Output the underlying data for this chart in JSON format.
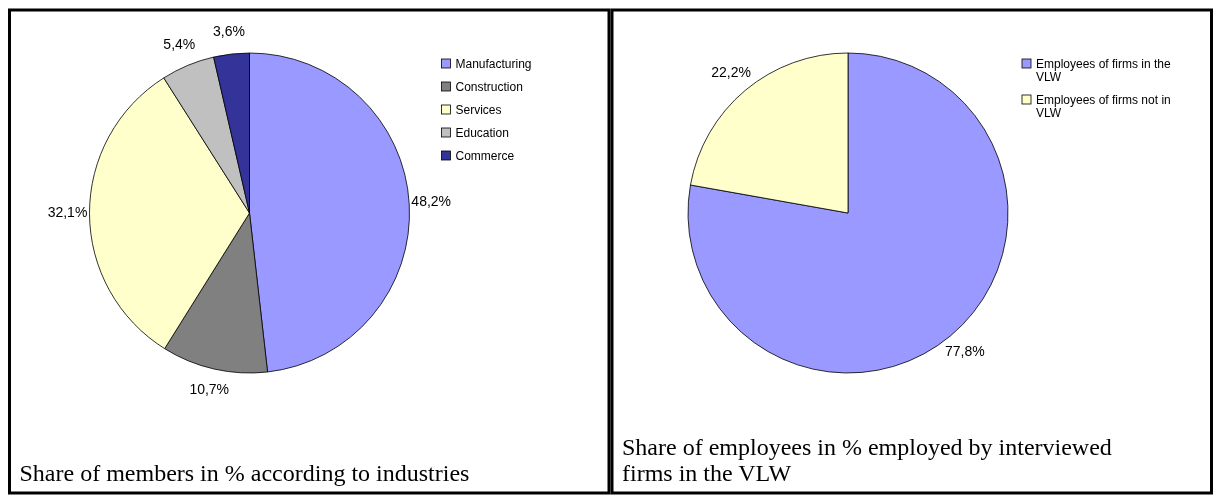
{
  "chart_data": [
    {
      "type": "pie",
      "title": "Share of members in % according to industries",
      "categories": [
        "Manufacturing",
        "Construction",
        "Services",
        "Education",
        "Commerce"
      ],
      "values": [
        48.2,
        10.7,
        32.1,
        5.4,
        3.6
      ],
      "colors": [
        "#9999ff",
        "#808080",
        "#ffffcc",
        "#c0c0c0",
        "#333399"
      ],
      "value_labels": [
        "48,2%",
        "10,7%",
        "32,1%",
        "5,4%",
        "3,6%"
      ],
      "legend": "top right"
    },
    {
      "type": "pie",
      "title": "Share of employees in % employed by interviewed firms in the VLW",
      "categories": [
        "Employees of firms in the VLW",
        "Employees of firms not in VLW"
      ],
      "values": [
        77.8,
        22.2
      ],
      "colors": [
        "#9999ff",
        "#ffffcc"
      ],
      "value_labels": [
        "77,8%",
        "22,2%"
      ],
      "legend": "top right"
    }
  ]
}
